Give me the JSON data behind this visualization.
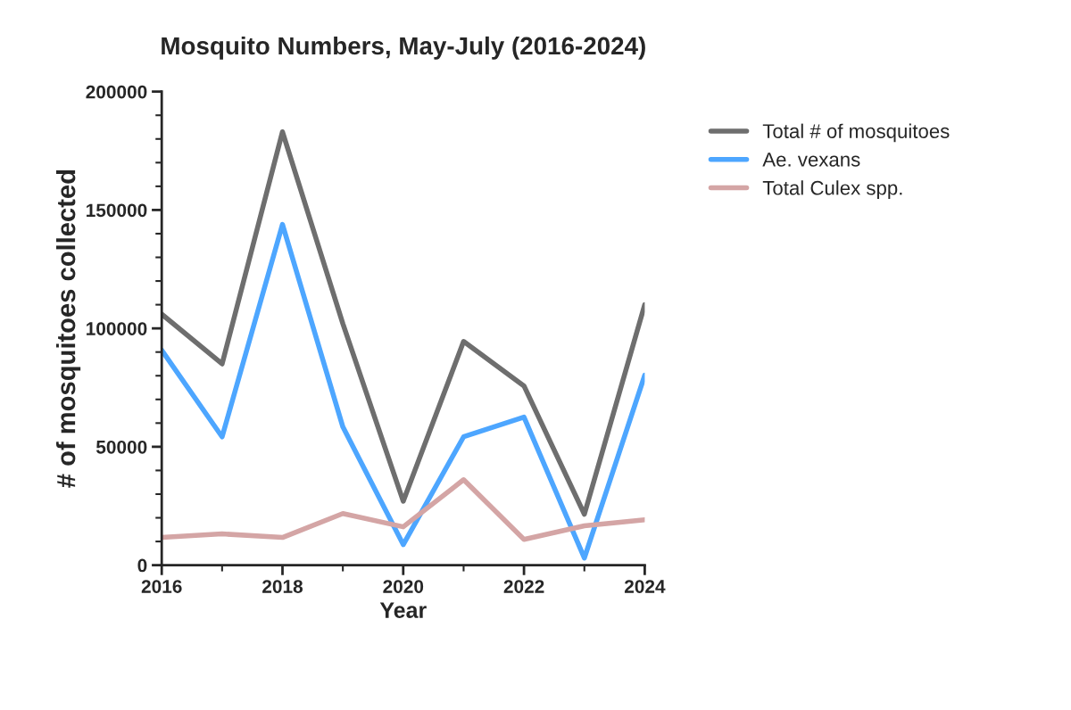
{
  "chart_data": {
    "type": "line",
    "title": "Mosquito Numbers, May-July (2016-2024)",
    "xlabel": "Year",
    "ylabel": "# of mosquitoes collected",
    "x": [
      2016,
      2017,
      2018,
      2019,
      2020,
      2021,
      2022,
      2023,
      2024
    ],
    "series": [
      {
        "name": "Total # of mosquitoes",
        "color": "#6e6e6e",
        "values": [
          106000,
          85000,
          183000,
          102000,
          27000,
          94500,
          75700,
          21500,
          110000
        ]
      },
      {
        "name": "Ae. vexans",
        "color": "#4da6ff",
        "values": [
          90800,
          54200,
          143900,
          58400,
          8700,
          54200,
          62500,
          3000,
          80200
        ]
      },
      {
        "name": "Total Culex spp.",
        "color": "#d4a5a5",
        "values": [
          11700,
          13200,
          11700,
          21800,
          16200,
          36100,
          10900,
          16600,
          19200
        ]
      }
    ],
    "xlim": [
      2016,
      2024
    ],
    "xticks": [
      2016,
      2018,
      2020,
      2022,
      2024
    ],
    "ylim": [
      0,
      200000
    ],
    "yticks": [
      0,
      50000,
      100000,
      150000,
      200000
    ],
    "grid": false,
    "legend": "right",
    "marker": "none",
    "line_style": "solid"
  }
}
